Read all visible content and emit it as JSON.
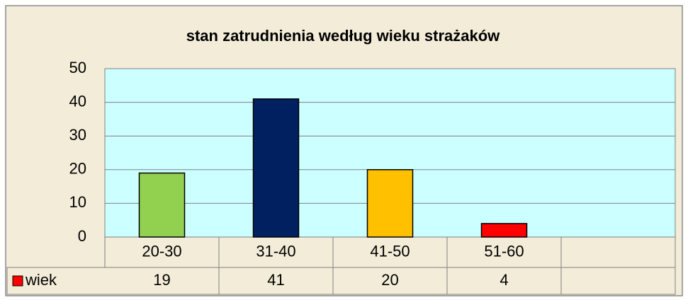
{
  "chart_data": {
    "type": "bar",
    "title": "stan zatrudnienia według wieku strażaków",
    "categories": [
      "20-30",
      "31-40",
      "41-50",
      "51-60",
      null
    ],
    "series": [
      {
        "name": "wiek",
        "color": "#ff0000",
        "colors": [
          "#92d050",
          "#002060",
          "#ffc000",
          "#ff0000",
          null
        ],
        "values": [
          19,
          41,
          20,
          4,
          null
        ]
      }
    ],
    "ylim": [
      0,
      50
    ],
    "yticks": [
      0,
      10,
      20,
      30,
      40,
      50
    ],
    "grid": true,
    "data_table": true
  }
}
